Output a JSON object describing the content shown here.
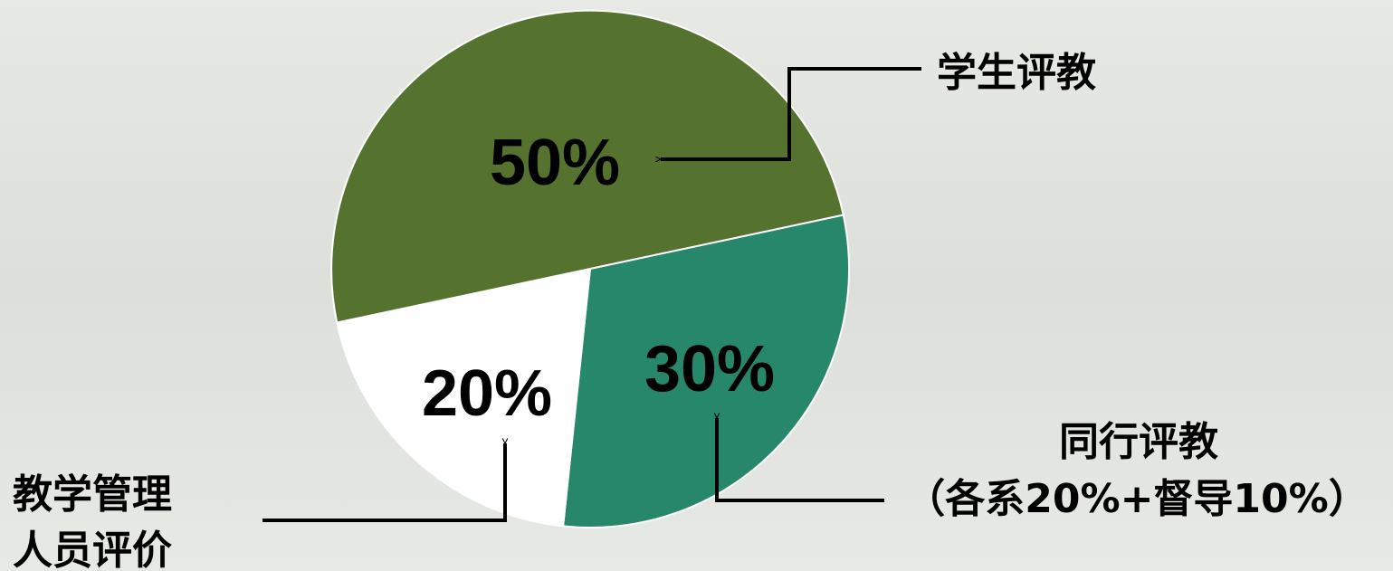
{
  "chart_data": {
    "type": "pie",
    "slices": [
      {
        "value": 50,
        "label": "50%",
        "callout": [
          "学生评教"
        ],
        "color": "#55732f"
      },
      {
        "value": 30,
        "label": "30%",
        "callout": [
          "同行评教",
          "（各系20%+督导10%）"
        ],
        "color": "#27876a"
      },
      {
        "value": 20,
        "label": "20%",
        "callout": [
          "教学管理",
          "人员评价"
        ],
        "color": "#ffffff"
      }
    ]
  }
}
